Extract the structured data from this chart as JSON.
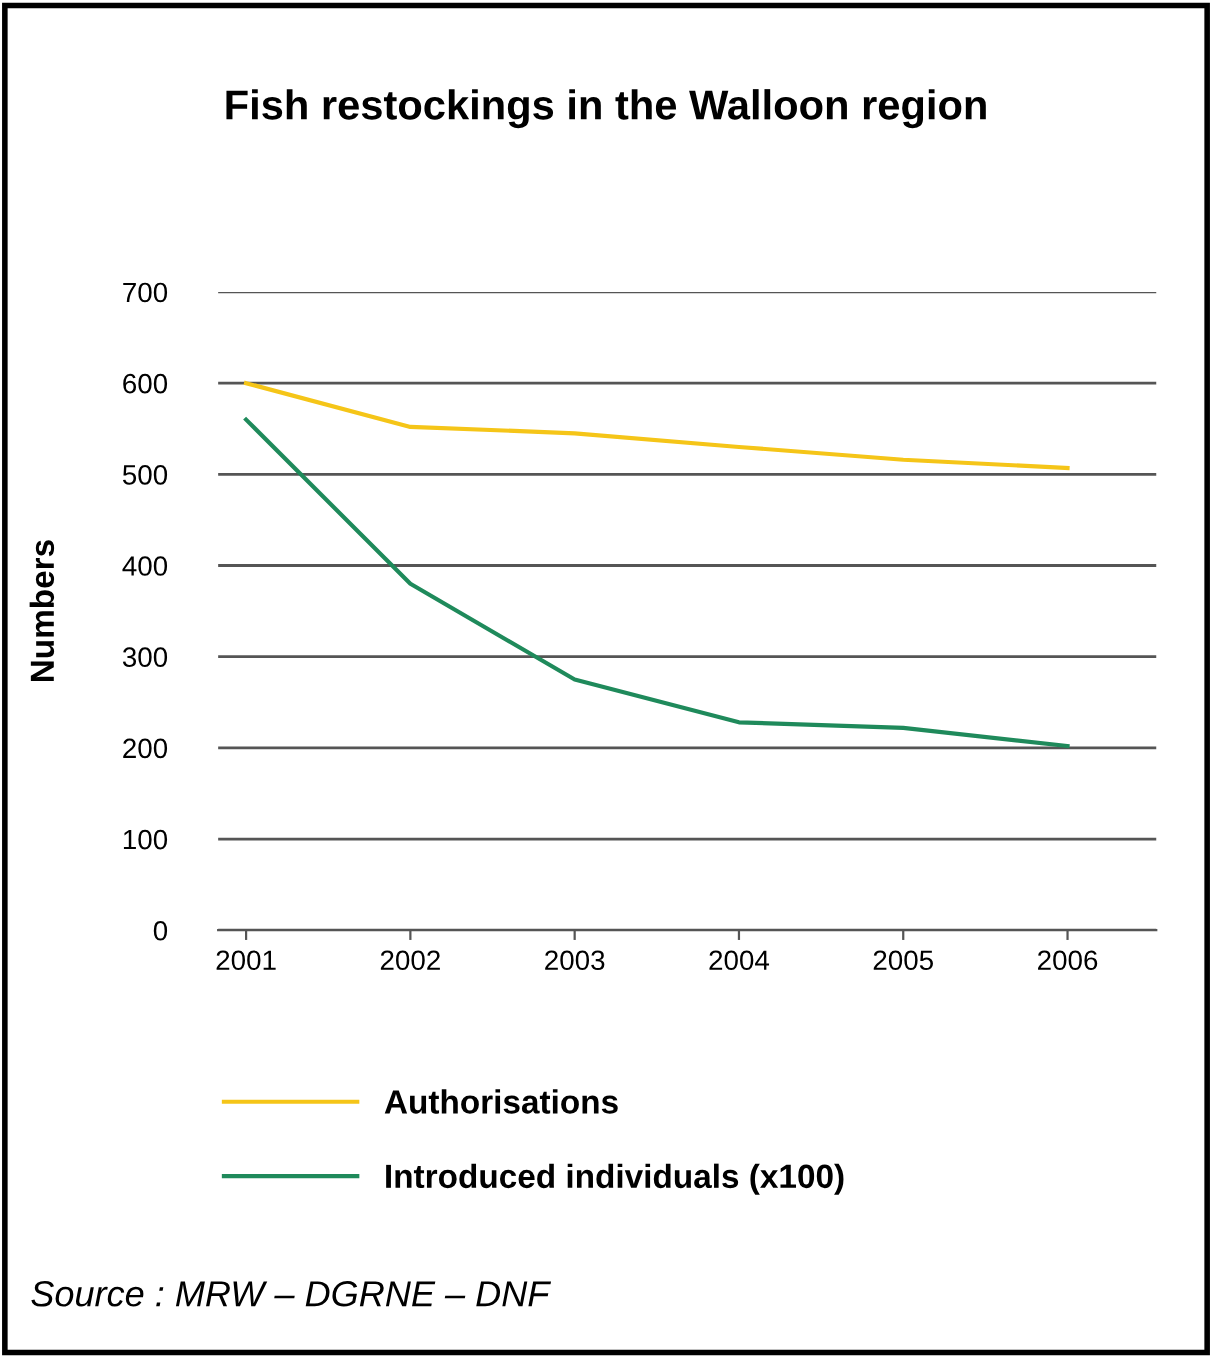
{
  "chart_data": {
    "type": "line",
    "title": "Fish restockings in the Walloon region",
    "ylabel": "Numbers",
    "x": [
      2001,
      2002,
      2003,
      2004,
      2005,
      2006
    ],
    "series": [
      {
        "name": "Authorisations",
        "color": "#f5c518",
        "values": [
          600,
          552,
          545,
          530,
          516,
          507
        ]
      },
      {
        "name": "Introduced individuals (x100)",
        "color": "#1f8a5b",
        "values": [
          560,
          380,
          275,
          228,
          222,
          202
        ]
      }
    ],
    "xlim": [
      2000.83,
      2006.54
    ],
    "xticks": [
      2001,
      2002,
      2003,
      2004,
      2005,
      2006
    ],
    "ylim": [
      0,
      700
    ],
    "yticks": [
      0,
      100,
      200,
      300,
      400,
      500,
      600,
      700
    ],
    "grid": "y",
    "legend": "bottom",
    "marker": "none",
    "line_style": "solid",
    "annotations": [
      "Source : MRW – DGRNE – DNF"
    ]
  }
}
